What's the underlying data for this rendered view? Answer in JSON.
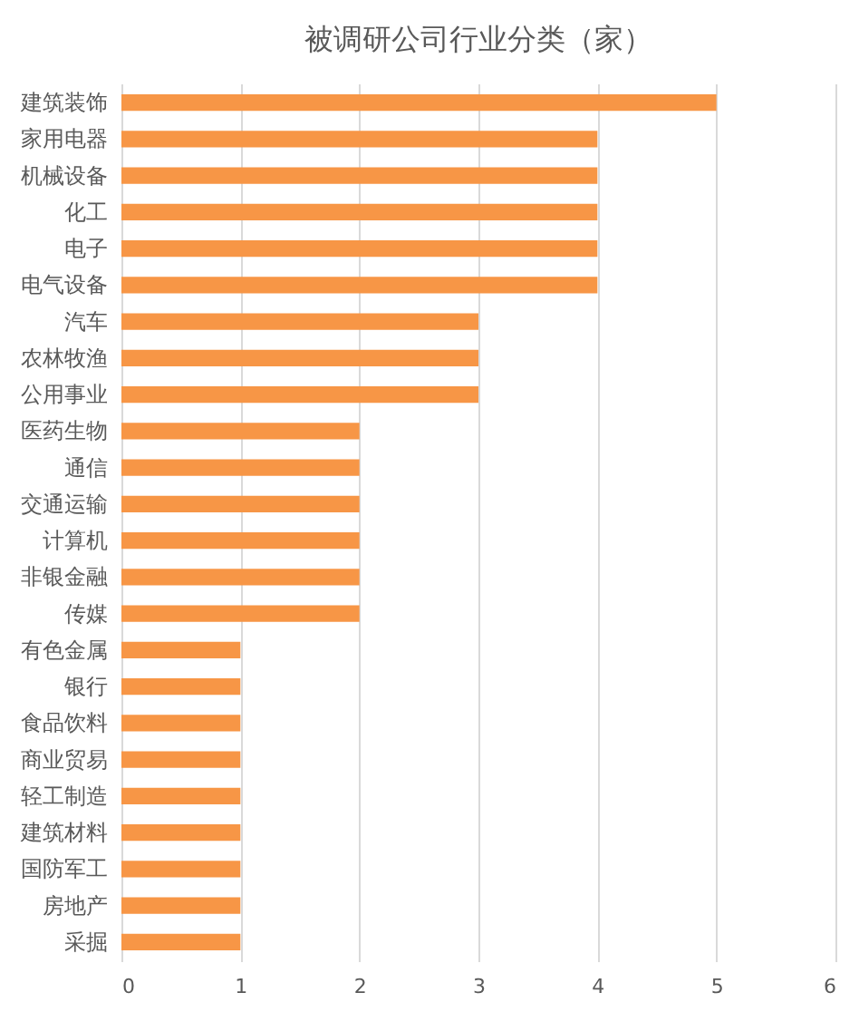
{
  "chart_data": {
    "type": "bar",
    "orientation": "horizontal",
    "title": "被调研公司行业分类（家）",
    "categories": [
      "建筑装饰",
      "家用电器",
      "机械设备",
      "化工",
      "电子",
      "电气设备",
      "汽车",
      "农林牧渔",
      "公用事业",
      "医药生物",
      "通信",
      "交通运输",
      "计算机",
      "非银金融",
      "传媒",
      "有色金属",
      "银行",
      "食品饮料",
      "商业贸易",
      "轻工制造",
      "建筑材料",
      "国防军工",
      "房地产",
      "采掘"
    ],
    "values": [
      5,
      4,
      4,
      4,
      4,
      4,
      3,
      3,
      3,
      2,
      2,
      2,
      2,
      2,
      2,
      1,
      1,
      1,
      1,
      1,
      1,
      1,
      1,
      1
    ],
    "color": "#f79646",
    "xlim": [
      0,
      6
    ],
    "xticks": [
      0,
      1,
      2,
      3,
      4,
      5,
      6
    ],
    "grid": "x"
  }
}
